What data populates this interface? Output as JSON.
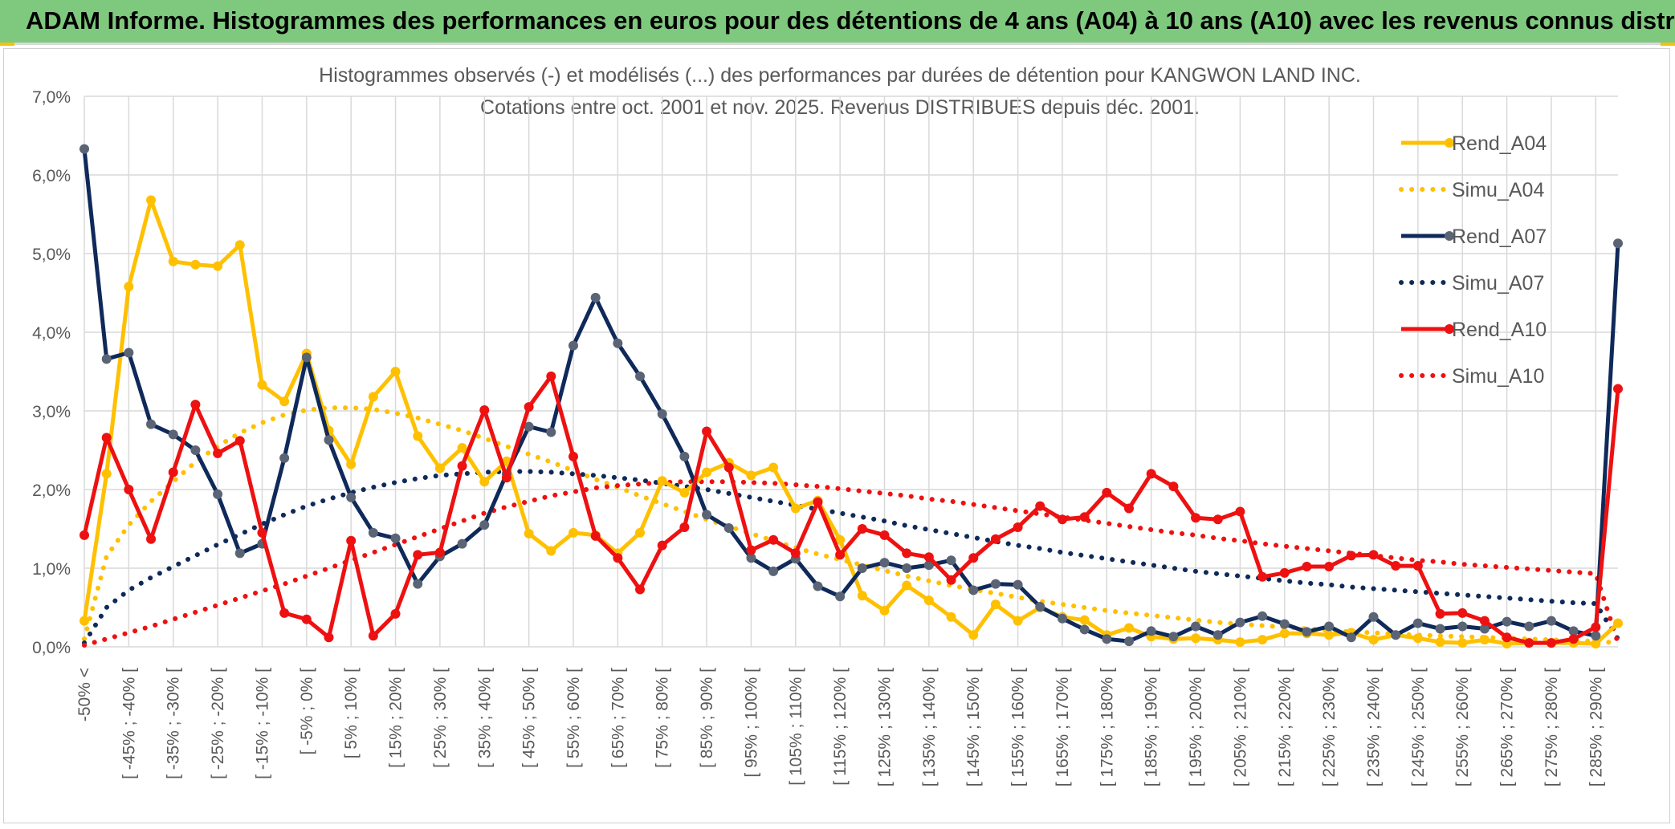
{
  "banner": {
    "title": "ADAM Informe. Histogrammes des performances en euros pour des détentions de 4 ans (A04) à 10 ans (A10) avec les revenus connus distribués"
  },
  "colors": {
    "banner_bg": "#7fc97f",
    "rend_a04": "#ffc000",
    "rend_a07": "#0f2a5a",
    "rend_a10": "#ee1111",
    "marker_a07": "#5a6475",
    "grid": "#d9d9d9",
    "axis_text": "#595959"
  },
  "chart_data": {
    "type": "line",
    "title": "Histogrammes observés (-) et modélisés (...) des performances par durées de détention pour KANGWON LAND INC.",
    "subtitle": "Cotations entre oct. 2001 et nov. 2025. Revenus DISTRIBUES depuis déc. 2001.",
    "y_ticks": [
      "0,0%",
      "1,0%",
      "2,0%",
      "3,0%",
      "4,0%",
      "5,0%",
      "6,0%",
      "7,0%"
    ],
    "ylim": [
      0,
      7
    ],
    "y_unit": "%",
    "grid": true,
    "legend_position": "right",
    "category_labels": [
      "-50% <",
      "[ -45% ; -40% [",
      "[ -35% ; -30% [",
      "[ -25% ; -20% [",
      "[ -15% ; -10% [",
      "[ -5% ; 0% [",
      "[ 5% ; 10% [",
      "[ 15% ; 20% [",
      "[ 25% ; 30% [",
      "[ 35% ; 40% [",
      "[ 45% ; 50% [",
      "[ 55% ; 60% [",
      "[ 65% ; 70% [",
      "[ 75% ; 80% [",
      "[ 85% ; 90% [",
      "[ 95% ; 100% [",
      "[ 105% ; 110% [",
      "[ 115% ; 120% [",
      "[ 125% ; 130% [",
      "[ 135% ; 140% [",
      "[ 145% ; 150% [",
      "[ 155% ; 160% [",
      "[ 165% ; 170% [",
      "[ 175% ; 180% [",
      "[ 185% ; 190% [",
      "[ 195% ; 200% [",
      "[ 205% ; 210% [",
      "[ 215% ; 220% [",
      "[ 225% ; 230% [",
      "[ 235% ; 240% [",
      "[ 245% ; 250% [",
      "[ 255% ; 260% [",
      "[ 265% ; 270% [",
      "[ 275% ; 280% [",
      "[ 285% ; 290% ["
    ],
    "series": [
      {
        "name": "Rend_A04",
        "style": "solid",
        "values": [
          0.33,
          2.2,
          4.58,
          5.68,
          4.9,
          4.86,
          4.84,
          5.11,
          3.33,
          3.12,
          3.73,
          2.75,
          2.32,
          3.18,
          3.5,
          2.68,
          2.27,
          2.53,
          2.1,
          2.36,
          1.44,
          1.22,
          1.45,
          1.42,
          1.19,
          1.45,
          2.11,
          1.96,
          2.22,
          2.34,
          2.18,
          2.28,
          1.76,
          1.86,
          1.36,
          0.65,
          0.46,
          0.78,
          0.59,
          0.38,
          0.15,
          0.54,
          0.33,
          0.5,
          0.38,
          0.34,
          0.15,
          0.24,
          0.13,
          0.1,
          0.11,
          0.09,
          0.06,
          0.09,
          0.17,
          0.17,
          0.15,
          0.18,
          0.09,
          0.15,
          0.11,
          0.06,
          0.05,
          0.09,
          0.04,
          0.05,
          0.05,
          0.05,
          0.04,
          0.3
        ]
      },
      {
        "name": "Simu_A04",
        "style": "dotted",
        "values": [
          0.1,
          1.15,
          1.55,
          1.85,
          2.1,
          2.35,
          2.55,
          2.72,
          2.85,
          2.95,
          3.01,
          3.04,
          3.04,
          3.02,
          2.97,
          2.91,
          2.83,
          2.75,
          2.65,
          2.55,
          2.45,
          2.35,
          2.24,
          2.13,
          2.03,
          1.92,
          1.82,
          1.72,
          1.62,
          1.53,
          1.44,
          1.35,
          1.26,
          1.18,
          1.11,
          1.04,
          0.97,
          0.9,
          0.84,
          0.78,
          0.73,
          0.68,
          0.63,
          0.58,
          0.54,
          0.5,
          0.46,
          0.43,
          0.4,
          0.37,
          0.34,
          0.31,
          0.29,
          0.27,
          0.25,
          0.23,
          0.21,
          0.19,
          0.18,
          0.16,
          0.15,
          0.14,
          0.13,
          0.12,
          0.11,
          0.1,
          0.09,
          0.08,
          0.07,
          0.05
        ]
      },
      {
        "name": "Rend_A07",
        "style": "solid",
        "values": [
          6.33,
          3.66,
          3.74,
          2.83,
          2.7,
          2.5,
          1.94,
          1.19,
          1.31,
          2.4,
          3.68,
          2.63,
          1.9,
          1.45,
          1.38,
          0.8,
          1.15,
          1.31,
          1.55,
          2.2,
          2.8,
          2.73,
          3.83,
          4.44,
          3.86,
          3.44,
          2.96,
          2.42,
          1.68,
          1.51,
          1.13,
          0.96,
          1.12,
          0.77,
          0.64,
          1.0,
          1.07,
          1.0,
          1.04,
          1.1,
          0.72,
          0.8,
          0.79,
          0.51,
          0.36,
          0.22,
          0.1,
          0.07,
          0.2,
          0.13,
          0.26,
          0.15,
          0.31,
          0.39,
          0.29,
          0.19,
          0.26,
          0.12,
          0.38,
          0.15,
          0.3,
          0.23,
          0.26,
          0.23,
          0.32,
          0.26,
          0.33,
          0.2,
          0.14,
          5.13
        ]
      },
      {
        "name": "Simu_A07",
        "style": "dotted",
        "values": [
          0.05,
          0.5,
          0.72,
          0.88,
          1.02,
          1.16,
          1.3,
          1.43,
          1.56,
          1.68,
          1.79,
          1.88,
          1.96,
          2.03,
          2.09,
          2.14,
          2.18,
          2.2,
          2.22,
          2.23,
          2.23,
          2.22,
          2.2,
          2.18,
          2.15,
          2.12,
          2.08,
          2.04,
          2.0,
          1.95,
          1.9,
          1.85,
          1.8,
          1.75,
          1.7,
          1.65,
          1.6,
          1.54,
          1.49,
          1.44,
          1.39,
          1.34,
          1.29,
          1.25,
          1.2,
          1.16,
          1.12,
          1.08,
          1.04,
          1.0,
          0.96,
          0.93,
          0.9,
          0.87,
          0.84,
          0.81,
          0.79,
          0.76,
          0.74,
          0.72,
          0.7,
          0.68,
          0.66,
          0.64,
          0.62,
          0.6,
          0.58,
          0.56,
          0.55,
          0.1
        ]
      },
      {
        "name": "Rend_A10",
        "style": "solid",
        "values": [
          1.42,
          2.66,
          2.0,
          1.37,
          2.22,
          3.08,
          2.46,
          2.62,
          1.45,
          0.43,
          0.35,
          0.12,
          1.35,
          0.14,
          0.42,
          1.17,
          1.2,
          2.3,
          3.01,
          2.15,
          3.05,
          3.44,
          2.42,
          1.41,
          1.13,
          0.73,
          1.29,
          1.52,
          2.74,
          2.28,
          1.23,
          1.36,
          1.19,
          1.84,
          1.17,
          1.5,
          1.42,
          1.19,
          1.14,
          0.85,
          1.13,
          1.37,
          1.52,
          1.79,
          1.62,
          1.65,
          1.96,
          1.76,
          2.2,
          2.04,
          1.64,
          1.62,
          1.72,
          0.89,
          0.94,
          1.02,
          1.02,
          1.16,
          1.17,
          1.03,
          1.03,
          0.42,
          0.43,
          0.33,
          0.12,
          0.05,
          0.05,
          0.1,
          0.25,
          3.28
        ]
      },
      {
        "name": "Simu_A10",
        "style": "dotted",
        "values": [
          0.02,
          0.1,
          0.18,
          0.26,
          0.35,
          0.44,
          0.53,
          0.62,
          0.71,
          0.8,
          0.9,
          1.0,
          1.1,
          1.2,
          1.3,
          1.4,
          1.5,
          1.6,
          1.7,
          1.78,
          1.85,
          1.92,
          1.97,
          2.02,
          2.05,
          2.07,
          2.09,
          2.1,
          2.1,
          2.1,
          2.09,
          2.08,
          2.06,
          2.04,
          2.01,
          1.98,
          1.95,
          1.92,
          1.88,
          1.85,
          1.81,
          1.77,
          1.73,
          1.69,
          1.65,
          1.61,
          1.57,
          1.53,
          1.49,
          1.45,
          1.42,
          1.38,
          1.35,
          1.31,
          1.28,
          1.25,
          1.22,
          1.19,
          1.16,
          1.13,
          1.1,
          1.08,
          1.05,
          1.03,
          1.01,
          0.99,
          0.97,
          0.95,
          0.93,
          0.05
        ]
      }
    ]
  }
}
